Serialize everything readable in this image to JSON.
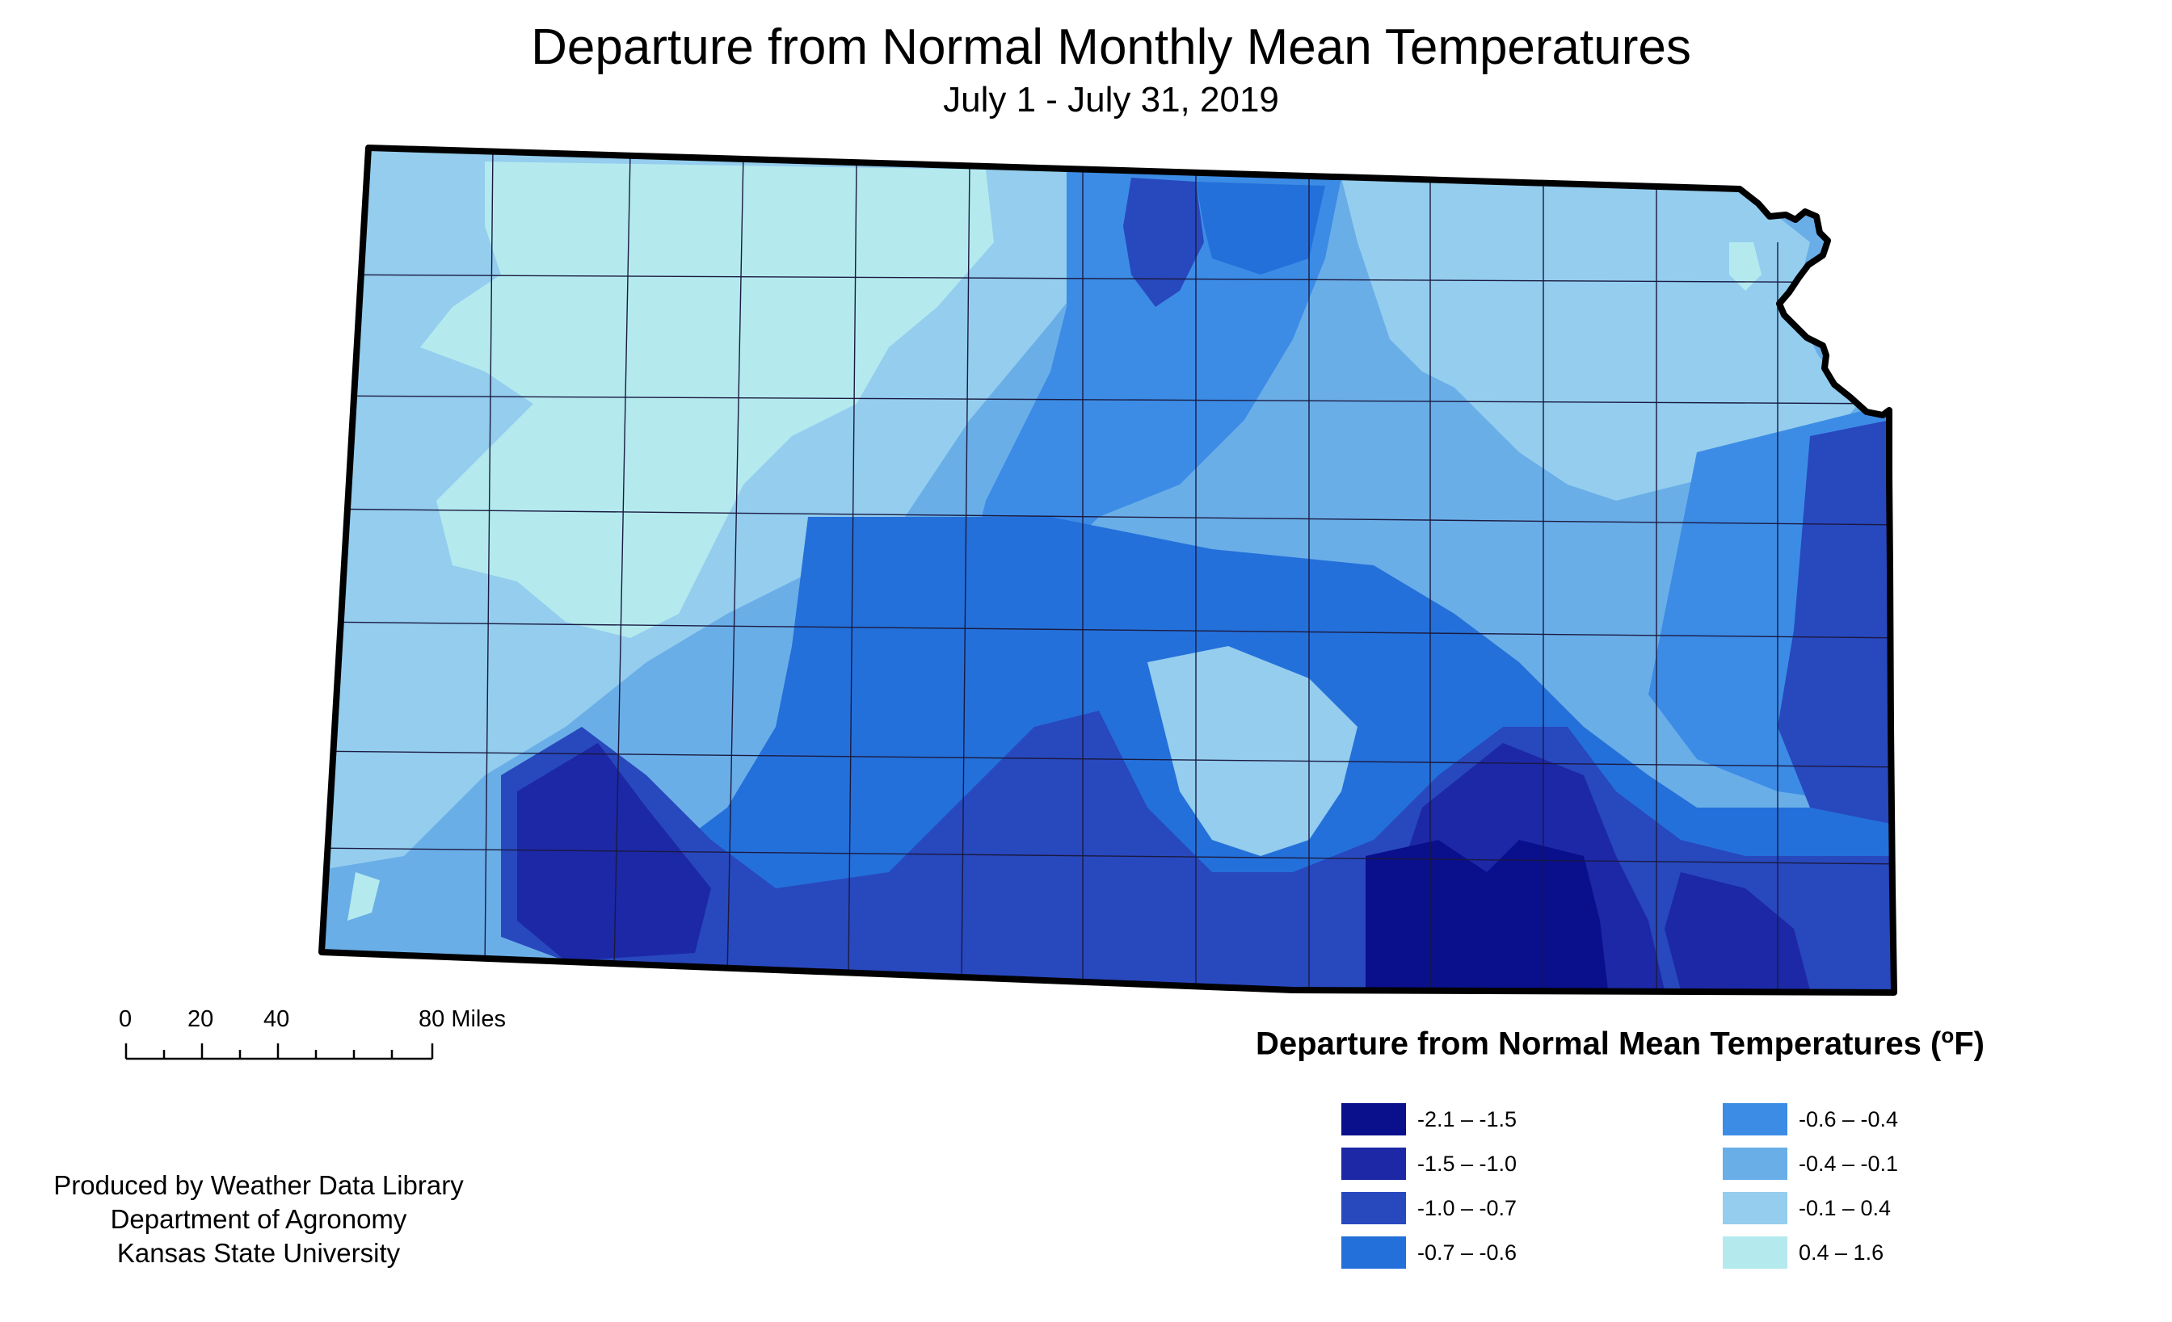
{
  "title": "Departure from Normal Monthly Mean Temperatures",
  "subtitle": "July 1 - July 31, 2019",
  "scale_bar": {
    "tick_labels": [
      "0",
      "20",
      "40",
      "80 Miles"
    ]
  },
  "legend": {
    "title": "Departure from Normal Mean Temperatures (",
    "unit_sup": "o",
    "unit_tail": "F)",
    "classes": [
      {
        "label": "-2.1 – -1.5",
        "color": "#0a0f8c"
      },
      {
        "label": "-1.5 – -1.0",
        "color": "#1c28a6"
      },
      {
        "label": "-1.0 – -0.7",
        "color": "#2848be"
      },
      {
        "label": "-0.7 – -0.6",
        "color": "#2470da"
      },
      {
        "label": "-0.6 – -0.4",
        "color": "#3c8ce6"
      },
      {
        "label": "-0.4 – -0.1",
        "color": "#6aaee8"
      },
      {
        "label": "-0.1 – 0.4",
        "color": "#94cdee"
      },
      {
        "label": "0.4 – 1.6",
        "color": "#b4eaee"
      }
    ]
  },
  "credits": {
    "line1": "Produced by Weather Data Library",
    "line2": "Department of Agronomy",
    "line3": "Kansas State University"
  },
  "map": {
    "state": "Kansas",
    "outline_color": "#000000"
  }
}
